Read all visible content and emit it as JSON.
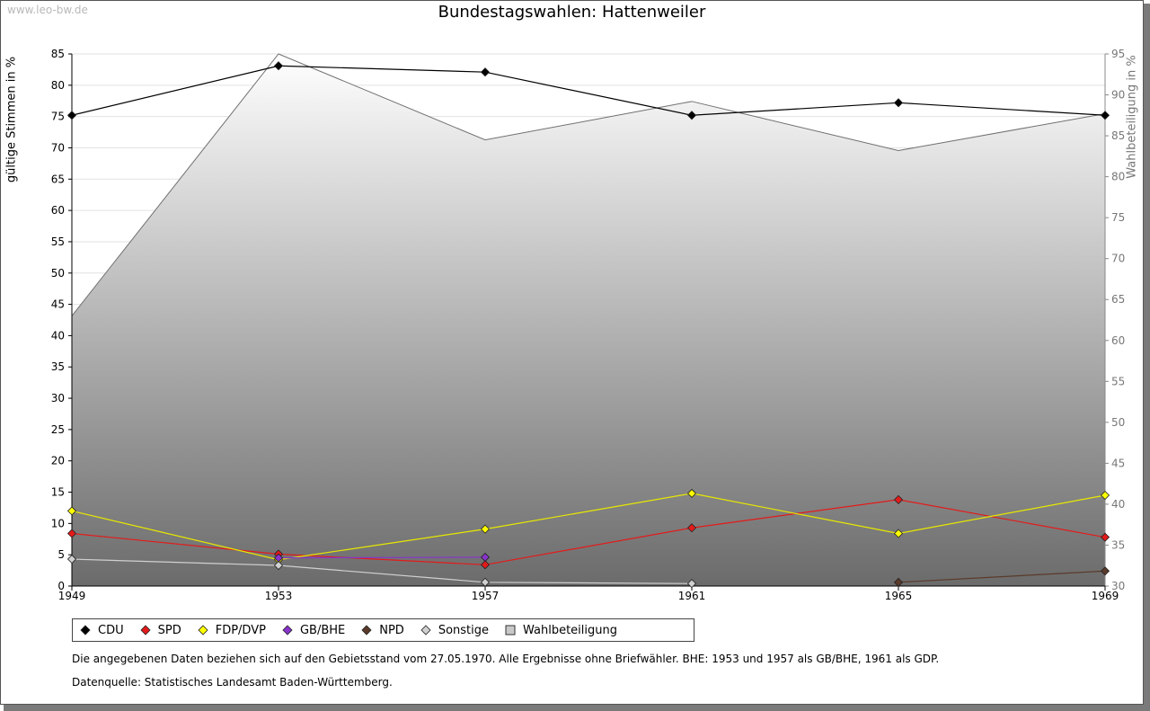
{
  "watermark": "www.leo-bw.de",
  "chart_data": {
    "type": "line",
    "title": "Bundestagswahlen: Hattenweiler",
    "ylabel": "gültige Stimmen in %",
    "y2label": "Wahlbeteiligung in %",
    "x": [
      "1949",
      "1953",
      "1957",
      "1961",
      "1965",
      "1969"
    ],
    "ylim": [
      0,
      85
    ],
    "yticks": [
      0,
      5,
      10,
      15,
      20,
      25,
      30,
      35,
      40,
      45,
      50,
      55,
      60,
      65,
      70,
      75,
      80,
      85
    ],
    "y2lim": [
      30,
      95
    ],
    "y2ticks": [
      30,
      35,
      40,
      45,
      50,
      55,
      60,
      65,
      70,
      75,
      80,
      85,
      90,
      95
    ],
    "grid": true,
    "series": [
      {
        "name": "CDU",
        "color": "#000000",
        "values": [
          75.2,
          83.1,
          82.1,
          75.2,
          77.2,
          75.2
        ]
      },
      {
        "name": "SPD",
        "color": "#e41a1a",
        "values": [
          8.4,
          5.1,
          3.4,
          9.3,
          13.8,
          7.8
        ]
      },
      {
        "name": "FDP/DVP",
        "color": "#ffff00",
        "values": [
          12.0,
          4.2,
          9.1,
          14.8,
          8.4,
          14.5
        ]
      },
      {
        "name": "GB/BHE",
        "color": "#8833cc",
        "values": [
          null,
          4.5,
          4.6,
          null,
          null,
          null
        ]
      },
      {
        "name": "NPD",
        "color": "#5a3a2a",
        "values": [
          null,
          null,
          null,
          null,
          0.6,
          2.4
        ]
      },
      {
        "name": "Sonstige",
        "color": "#d0d0d0",
        "values": [
          4.3,
          3.3,
          0.6,
          0.4,
          null,
          null
        ]
      }
    ],
    "turnout": {
      "name": "Wahlbeteiligung",
      "values": [
        63.0,
        95.0,
        84.5,
        89.2,
        83.2,
        87.7
      ]
    },
    "legend_position": "bottom-left"
  },
  "notes": {
    "line1": "Die angegebenen Daten beziehen sich auf den Gebietsstand vom 27.05.1970. Alle Ergebnisse ohne Briefwähler. BHE: 1953 und 1957 als GB/BHE, 1961 als GDP.",
    "line2": "Datenquelle: Statistisches Landesamt Baden-Württemberg."
  }
}
